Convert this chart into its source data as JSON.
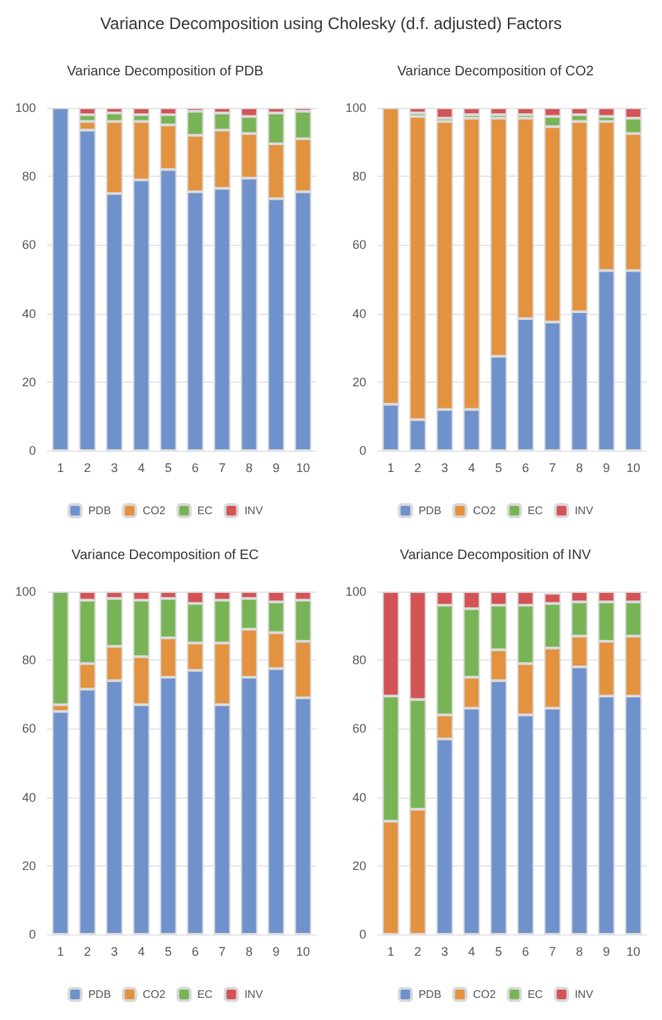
{
  "chart_data": [
    {
      "type": "bar",
      "title": "Variance Decomposition of PDB",
      "annotations": [
        "Variance Decomposition using Cholesky (d.f. adjusted) Factors"
      ],
      "stacked": true,
      "categories": [
        "1",
        "2",
        "3",
        "4",
        "5",
        "6",
        "7",
        "8",
        "9",
        "10"
      ],
      "ylim": [
        0,
        100
      ],
      "yticks": [
        0,
        20,
        40,
        60,
        80,
        100
      ],
      "grid": "y",
      "legend": "bottom",
      "series": [
        {
          "name": "PDB",
          "color": "#6f91cc",
          "values": [
            100,
            93.5,
            75,
            79,
            82,
            75.5,
            76.5,
            79.5,
            73.5,
            75.5
          ]
        },
        {
          "name": "CO2",
          "color": "#e3923f",
          "values": [
            0,
            2.5,
            21,
            17,
            13,
            16.5,
            17,
            13,
            16,
            15.5
          ]
        },
        {
          "name": "EC",
          "color": "#78b455",
          "values": [
            0,
            2,
            2.5,
            2,
            3,
            7,
            5,
            5,
            9,
            8
          ]
        },
        {
          "name": "INV",
          "color": "#d45356",
          "values": [
            0,
            2,
            1.5,
            2,
            2,
            1,
            1.5,
            2.5,
            1.5,
            1
          ]
        }
      ]
    },
    {
      "type": "bar",
      "title": "Variance Decomposition of CO2",
      "stacked": true,
      "categories": [
        "1",
        "2",
        "3",
        "4",
        "5",
        "6",
        "7",
        "8",
        "9",
        "10"
      ],
      "ylim": [
        0,
        100
      ],
      "yticks": [
        0,
        20,
        40,
        60,
        80,
        100
      ],
      "grid": "y",
      "legend": "bottom",
      "series": [
        {
          "name": "PDB",
          "color": "#6f91cc",
          "values": [
            13.5,
            9,
            12,
            12,
            27.5,
            38.5,
            37.5,
            40.5,
            52.5,
            52.5
          ]
        },
        {
          "name": "CO2",
          "color": "#e3923f",
          "values": [
            86.5,
            88.5,
            84,
            85,
            69.5,
            58.5,
            57,
            55.5,
            43.5,
            40
          ]
        },
        {
          "name": "EC",
          "color": "#78b455",
          "values": [
            0,
            1,
            1,
            1,
            1,
            1,
            3,
            2,
            1.5,
            4.5
          ]
        },
        {
          "name": "INV",
          "color": "#d45356",
          "values": [
            0,
            1.5,
            3,
            2,
            2,
            2,
            2.5,
            2,
            2.5,
            3
          ]
        }
      ]
    },
    {
      "type": "bar",
      "title": "Variance Decomposition of EC",
      "stacked": true,
      "categories": [
        "1",
        "2",
        "3",
        "4",
        "5",
        "6",
        "7",
        "8",
        "9",
        "10"
      ],
      "ylim": [
        0,
        100
      ],
      "yticks": [
        0,
        20,
        40,
        60,
        80,
        100
      ],
      "grid": "y",
      "legend": "bottom",
      "series": [
        {
          "name": "PDB",
          "color": "#6f91cc",
          "values": [
            65,
            71.5,
            74,
            67,
            75,
            77,
            67,
            75,
            77.5,
            69
          ]
        },
        {
          "name": "CO2",
          "color": "#e3923f",
          "values": [
            2,
            7.5,
            10,
            14,
            11.5,
            8,
            18,
            14,
            10.5,
            16.5
          ]
        },
        {
          "name": "EC",
          "color": "#78b455",
          "values": [
            33,
            18.5,
            14,
            16.5,
            11.5,
            11.5,
            12.5,
            9,
            9,
            12
          ]
        },
        {
          "name": "INV",
          "color": "#d45356",
          "values": [
            0,
            2.5,
            2,
            2.5,
            2,
            3.5,
            2.5,
            2,
            3,
            2.5
          ]
        }
      ]
    },
    {
      "type": "bar",
      "title": "Variance Decomposition of INV",
      "stacked": true,
      "categories": [
        "1",
        "2",
        "3",
        "4",
        "5",
        "6",
        "7",
        "8",
        "9",
        "10"
      ],
      "ylim": [
        0,
        100
      ],
      "yticks": [
        0,
        20,
        40,
        60,
        80,
        100
      ],
      "grid": "y",
      "legend": "bottom",
      "series": [
        {
          "name": "PDB",
          "color": "#6f91cc",
          "values": [
            0,
            0,
            57,
            66,
            74,
            64,
            66,
            78,
            69.5,
            69.5
          ]
        },
        {
          "name": "CO2",
          "color": "#e3923f",
          "values": [
            33,
            36.5,
            7,
            9,
            9,
            15,
            17.5,
            9,
            16,
            17.5
          ]
        },
        {
          "name": "EC",
          "color": "#78b455",
          "values": [
            36.5,
            32,
            32,
            20,
            13,
            17,
            13,
            10,
            11.5,
            10
          ]
        },
        {
          "name": "INV",
          "color": "#d45356",
          "values": [
            30.5,
            31.5,
            4,
            5,
            4,
            4,
            3,
            3,
            3,
            3
          ]
        }
      ]
    }
  ]
}
